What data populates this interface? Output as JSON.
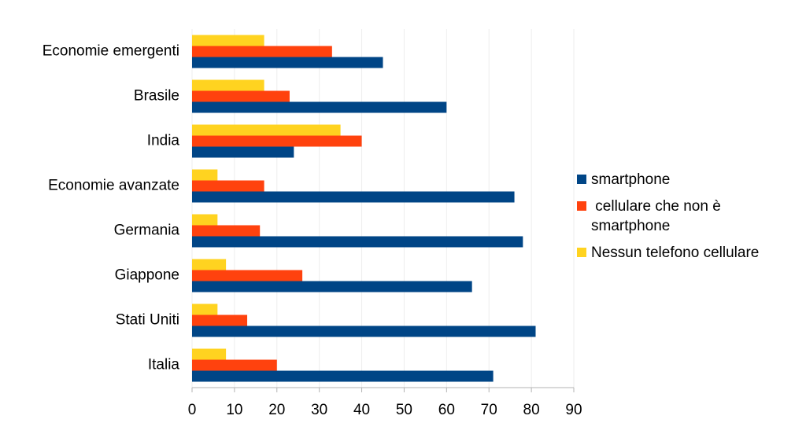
{
  "chart_data": {
    "type": "bar",
    "orientation": "horizontal",
    "categories": [
      "Economie emergenti",
      "Brasile",
      "India",
      "Economie avanzate",
      "Germania",
      "Giappone",
      "Stati Uniti",
      "Italia"
    ],
    "series": [
      {
        "name": "smartphone",
        "color": "#004586",
        "values": [
          45,
          60,
          24,
          76,
          78,
          66,
          81,
          71
        ]
      },
      {
        "name": " cellulare che non è smartphone",
        "color": "#ff420e",
        "values": [
          33,
          23,
          40,
          17,
          16,
          26,
          13,
          20
        ]
      },
      {
        "name": "Nessun telefono cellulare",
        "color": "#ffd320",
        "values": [
          17,
          17,
          35,
          6,
          6,
          8,
          6,
          8
        ]
      }
    ],
    "xlim": [
      0,
      90
    ],
    "xticks": [
      0,
      10,
      20,
      30,
      40,
      50,
      60,
      70,
      80,
      90
    ],
    "grid": true,
    "legend": "right"
  }
}
